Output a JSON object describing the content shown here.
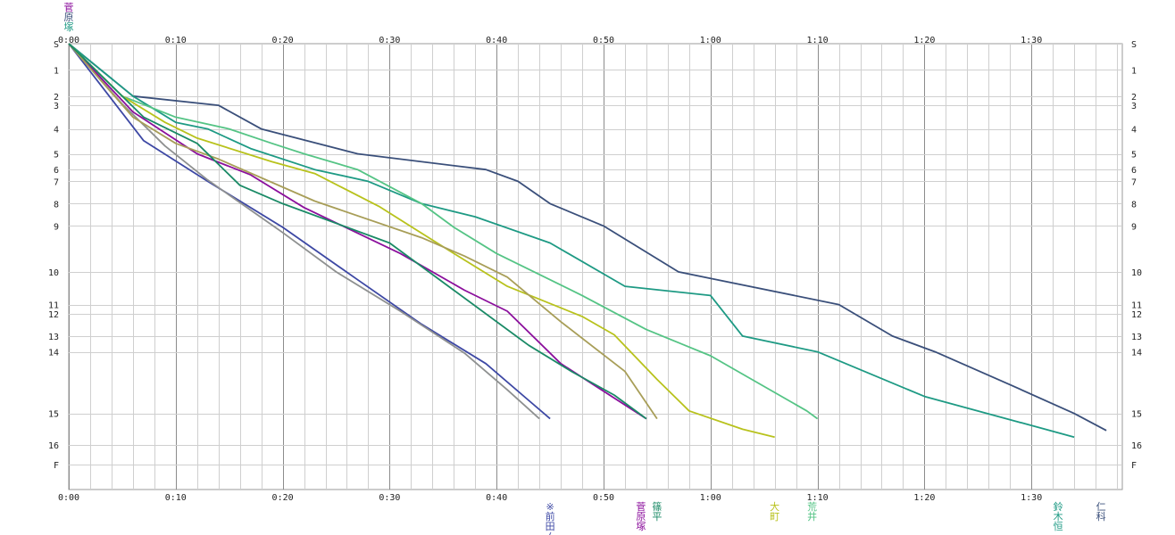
{
  "chart_data": {
    "type": "line",
    "x_unit": "minutes",
    "xlim": [
      0,
      99
    ],
    "ylim": [
      0,
      17
    ],
    "x_ticks": [
      {
        "value": 0,
        "label": "0:00"
      },
      {
        "value": 10,
        "label": "0:10"
      },
      {
        "value": 20,
        "label": "0:20"
      },
      {
        "value": 30,
        "label": "0:30"
      },
      {
        "value": 40,
        "label": "0:40"
      },
      {
        "value": 50,
        "label": "0:50"
      },
      {
        "value": 60,
        "label": "1:00"
      },
      {
        "value": 70,
        "label": "1:10"
      },
      {
        "value": 80,
        "label": "1:20"
      },
      {
        "value": 90,
        "label": "1:30"
      }
    ],
    "y_ticks": [
      {
        "value": 0,
        "label": "S"
      },
      {
        "value": 1,
        "label": "1"
      },
      {
        "value": 2,
        "label": "2"
      },
      {
        "value": 3,
        "label": "3"
      },
      {
        "value": 4,
        "label": "4"
      },
      {
        "value": 5,
        "label": "5"
      },
      {
        "value": 6,
        "label": "6"
      },
      {
        "value": 7,
        "label": "7"
      },
      {
        "value": 8,
        "label": "8"
      },
      {
        "value": 9,
        "label": "9"
      },
      {
        "value": 10,
        "label": "10"
      },
      {
        "value": 11,
        "label": "11"
      },
      {
        "value": 12,
        "label": "12"
      },
      {
        "value": 13,
        "label": "13"
      },
      {
        "value": 14,
        "label": "14"
      },
      {
        "value": 15,
        "label": "15"
      },
      {
        "value": 16,
        "label": "16"
      },
      {
        "value": 17,
        "label": "F"
      }
    ],
    "y_label_positions": [
      0,
      1,
      2,
      2.35,
      3.25,
      4.2,
      4.8,
      5.25,
      6.1,
      6.95,
      8.7,
      9.95,
      10.3,
      11.15,
      11.75,
      14.1,
      15.3,
      16.05
    ],
    "start_label": "菅原塚",
    "grid": true,
    "series": [
      {
        "color": "#3a4f7a",
        "points": [
          [
            0,
            0
          ],
          [
            6,
            2
          ],
          [
            14,
            2.35
          ],
          [
            18,
            3.25
          ],
          [
            27,
            4.2
          ],
          [
            39,
            4.8
          ],
          [
            42,
            5.25
          ],
          [
            45,
            6.1
          ],
          [
            50,
            6.95
          ],
          [
            57,
            8.7
          ],
          [
            60,
            8.95
          ],
          [
            72,
            9.95
          ],
          [
            77,
            11.15
          ],
          [
            81,
            11.75
          ],
          [
            88,
            13
          ],
          [
            94,
            14.1
          ],
          [
            97,
            14.75
          ]
        ]
      },
      {
        "color": "#1e9a84",
        "points": [
          [
            0,
            0
          ],
          [
            6,
            2
          ],
          [
            10,
            3
          ],
          [
            13,
            3.25
          ],
          [
            17,
            4
          ],
          [
            23,
            4.8
          ],
          [
            28,
            5.25
          ],
          [
            33,
            6.1
          ],
          [
            38,
            6.6
          ],
          [
            45,
            7.6
          ],
          [
            52,
            9.25
          ],
          [
            60,
            9.6
          ],
          [
            63,
            11.15
          ],
          [
            70,
            11.75
          ],
          [
            80,
            13.45
          ],
          [
            94,
            15
          ]
        ]
      },
      {
        "color": "#55c485",
        "points": [
          [
            0,
            0
          ],
          [
            5,
            2
          ],
          [
            10,
            2.8
          ],
          [
            15,
            3.25
          ],
          [
            19,
            3.8
          ],
          [
            22,
            4.2
          ],
          [
            27,
            4.8
          ],
          [
            33,
            6.1
          ],
          [
            36,
            7
          ],
          [
            40,
            8
          ],
          [
            48,
            9.6
          ],
          [
            54,
            10.9
          ],
          [
            60,
            11.9
          ],
          [
            69,
            14
          ],
          [
            70,
            14.3
          ]
        ]
      },
      {
        "color": "#b8c21c",
        "points": [
          [
            0,
            0
          ],
          [
            5,
            2
          ],
          [
            9,
            3
          ],
          [
            12,
            3.6
          ],
          [
            19,
            4.5
          ],
          [
            23,
            4.95
          ],
          [
            29,
            6.2
          ],
          [
            36,
            8
          ],
          [
            41,
            9.25
          ],
          [
            48,
            10.4
          ],
          [
            51,
            11.1
          ],
          [
            55,
            12.8
          ],
          [
            58,
            14
          ],
          [
            63,
            14.7
          ],
          [
            66,
            15
          ]
        ]
      },
      {
        "color": "#3d48a4",
        "points": [
          [
            0,
            0
          ],
          [
            7,
            3.7
          ],
          [
            13,
            5.25
          ],
          [
            20,
            7
          ],
          [
            27,
            9
          ],
          [
            33,
            10.7
          ],
          [
            39,
            12.2
          ],
          [
            43,
            13.6
          ],
          [
            45,
            14.3
          ]
        ]
      },
      {
        "color": "#8e9090",
        "points": [
          [
            0,
            0
          ],
          [
            5,
            2.3
          ],
          [
            9,
            3.9
          ],
          [
            13,
            5.2
          ],
          [
            20,
            7.2
          ],
          [
            25,
            8.7
          ],
          [
            31,
            10.2
          ],
          [
            37,
            11.8
          ],
          [
            41,
            13.2
          ],
          [
            44,
            14.3
          ]
        ]
      },
      {
        "color": "#8b0f9c",
        "points": [
          [
            0,
            0
          ],
          [
            6,
            2.6
          ],
          [
            12,
            4.2
          ],
          [
            17,
            5
          ],
          [
            22,
            6.25
          ],
          [
            31,
            8
          ],
          [
            37,
            9.4
          ],
          [
            41,
            10.2
          ],
          [
            46,
            12.2
          ],
          [
            54,
            14.3
          ]
        ]
      },
      {
        "color": "#a89e58",
        "points": [
          [
            0,
            0
          ],
          [
            6,
            2.8
          ],
          [
            10,
            3.8
          ],
          [
            14,
            4.4
          ],
          [
            23,
            6
          ],
          [
            33,
            7.4
          ],
          [
            37,
            8.1
          ],
          [
            41,
            8.9
          ],
          [
            46,
            10.6
          ],
          [
            52,
            12.5
          ],
          [
            55,
            14.3
          ]
        ]
      },
      {
        "color": "#1a8a66",
        "points": [
          [
            0,
            0
          ],
          [
            7,
            2.8
          ],
          [
            12,
            3.8
          ],
          [
            16,
            5.4
          ],
          [
            20,
            6.1
          ],
          [
            30,
            7.6
          ],
          [
            36,
            9.4
          ],
          [
            43,
            11.5
          ],
          [
            47,
            12.5
          ],
          [
            51,
            13.4
          ],
          [
            54,
            14.3
          ]
        ]
      }
    ],
    "end_labels": [
      {
        "text": "※\n前\n田\n(",
        "x": 45,
        "color": "#3d48a4"
      },
      {
        "text": "菅\n原\n塚",
        "x": 53.5,
        "color": "#8b0f9c"
      },
      {
        "text": "篠\n平",
        "x": 55,
        "color": "#1a8a66"
      },
      {
        "text": "大\n町",
        "x": 66,
        "color": "#b8c21c"
      },
      {
        "text": "荒\n井",
        "x": 69.5,
        "color": "#55c485"
      },
      {
        "text": "鈴\n木\n恒",
        "x": 92.5,
        "color": "#1e9a84"
      },
      {
        "text": "仁\n科",
        "x": 96.5,
        "color": "#3a4f7a"
      }
    ]
  }
}
